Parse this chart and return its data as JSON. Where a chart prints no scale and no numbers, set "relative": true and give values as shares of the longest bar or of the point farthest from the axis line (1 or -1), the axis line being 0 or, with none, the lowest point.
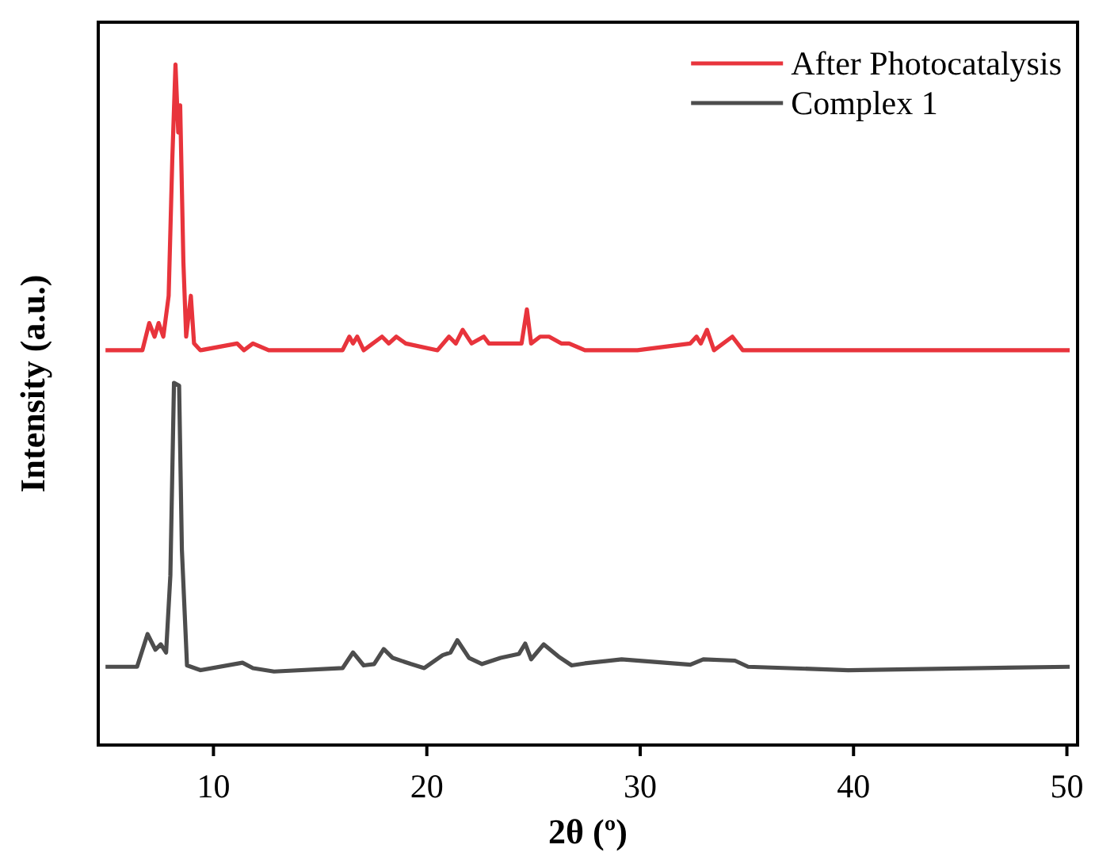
{
  "chart_data": {
    "type": "line",
    "relative": true,
    "xlabel": "2θ (º)",
    "ylabel": "Intensity (a.u.)",
    "xlim": [
      4.6,
      50.5
    ],
    "xticks": [
      10,
      20,
      30,
      40,
      50
    ],
    "grid": false,
    "legend": "top right",
    "marker": "none",
    "line_style": "solid",
    "series": [
      {
        "name": "After Photocatalysis",
        "color": "#e8343c",
        "x": [
          4.94,
          6.67,
          6.99,
          7.24,
          7.43,
          7.65,
          7.9,
          8.07,
          8.22,
          8.35,
          8.44,
          8.59,
          8.72,
          8.94,
          9.09,
          9.39,
          11.11,
          11.43,
          11.85,
          12.59,
          15.31,
          16.05,
          16.37,
          16.54,
          16.74,
          17.04,
          17.9,
          18.22,
          18.57,
          19.01,
          20.5,
          21.04,
          21.36,
          21.68,
          22.1,
          22.67,
          22.91,
          24.44,
          24.69,
          24.89,
          25.31,
          25.73,
          26.3,
          26.67,
          27.41,
          29.87,
          32.35,
          32.64,
          32.84,
          33.13,
          33.46,
          34.32,
          34.81,
          36.79,
          38.2,
          38.74,
          42.22,
          50.13
        ],
        "values": [
          0.58,
          0.58,
          0.62,
          0.6,
          0.62,
          0.6,
          0.66,
          0.86,
          1,
          0.9,
          0.94,
          0.71,
          0.6,
          0.66,
          0.59,
          0.58,
          0.59,
          0.58,
          0.59,
          0.58,
          0.58,
          0.58,
          0.6,
          0.59,
          0.6,
          0.58,
          0.6,
          0.59,
          0.6,
          0.59,
          0.58,
          0.6,
          0.59,
          0.61,
          0.59,
          0.6,
          0.59,
          0.59,
          0.64,
          0.59,
          0.6,
          0.6,
          0.59,
          0.59,
          0.58,
          0.58,
          0.59,
          0.6,
          0.59,
          0.61,
          0.58,
          0.6,
          0.58,
          0.58,
          0.58,
          0.58,
          0.58,
          0.58
        ]
      },
      {
        "name": "Complex 1",
        "color": "#4d4d4d",
        "x": [
          4.94,
          6.42,
          6.91,
          7.28,
          7.53,
          7.78,
          7.98,
          8.15,
          8.39,
          8.52,
          8.76,
          9.39,
          11.36,
          11.85,
          12.84,
          16.05,
          16.54,
          17.04,
          17.53,
          17.98,
          18.4,
          19.26,
          19.88,
          20.74,
          21.11,
          21.43,
          21.98,
          22.59,
          23.46,
          24.32,
          24.61,
          24.89,
          25.48,
          26.17,
          26.79,
          27.41,
          29.13,
          32.35,
          32.96,
          34.44,
          35.06,
          39.75,
          50.13
        ],
        "values": [
          0.115,
          0.115,
          0.163,
          0.14,
          0.148,
          0.136,
          0.249,
          0.532,
          0.528,
          0.287,
          0.117,
          0.11,
          0.121,
          0.113,
          0.108,
          0.113,
          0.136,
          0.117,
          0.119,
          0.141,
          0.128,
          0.119,
          0.113,
          0.132,
          0.136,
          0.154,
          0.128,
          0.119,
          0.128,
          0.134,
          0.149,
          0.126,
          0.148,
          0.13,
          0.117,
          0.12,
          0.126,
          0.118,
          0.126,
          0.124,
          0.115,
          0.11,
          0.115
        ]
      }
    ]
  }
}
